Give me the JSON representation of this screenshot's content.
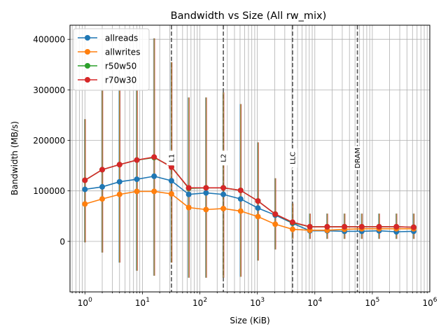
{
  "chart_data": {
    "type": "line",
    "title": "Bandwidth vs Size (All rw_mix)",
    "xlabel": "Size (KiB)",
    "ylabel": "Bandwidth (MB/s)",
    "x_scale": "log",
    "xlim": [
      0.55,
      1000000
    ],
    "ylim": [
      -100000,
      428000
    ],
    "grid": true,
    "legend_position": "top-left",
    "x_ticks": [
      {
        "value": 1,
        "base": "10",
        "exp": "0"
      },
      {
        "value": 10,
        "base": "10",
        "exp": "1"
      },
      {
        "value": 100,
        "base": "10",
        "exp": "2"
      },
      {
        "value": 1000,
        "base": "10",
        "exp": "3"
      },
      {
        "value": 10000,
        "base": "10",
        "exp": "4"
      },
      {
        "value": 100000,
        "base": "10",
        "exp": "5"
      },
      {
        "value": 1000000,
        "base": "10",
        "exp": "6"
      }
    ],
    "y_ticks": [
      {
        "value": 0,
        "label": "0"
      },
      {
        "value": 100000,
        "label": "100000"
      },
      {
        "value": 200000,
        "label": "200000"
      },
      {
        "value": 300000,
        "label": "300000"
      },
      {
        "value": 400000,
        "label": "400000"
      }
    ],
    "cache_lines": [
      {
        "label": "L1",
        "x": 32
      },
      {
        "label": "L2",
        "x": 256
      },
      {
        "label": "LLC",
        "x": 4096
      },
      {
        "label": "DRAM",
        "x": 55000
      }
    ],
    "x": [
      1,
      2,
      4,
      8,
      16,
      32,
      64,
      128,
      256,
      512,
      1024,
      2048,
      4096,
      8192,
      16384,
      32768,
      65536,
      131072,
      262144,
      524288
    ],
    "series": [
      {
        "name": "allreads",
        "color": "#1f77b4",
        "values": [
          103000,
          108000,
          118000,
          123000,
          129000,
          120000,
          93000,
          96000,
          93000,
          84000,
          66000,
          52000,
          36000,
          21000,
          21000,
          20000,
          20000,
          21000,
          19000,
          20000
        ]
      },
      {
        "name": "allwrites",
        "color": "#ff7f0e",
        "values": [
          74000,
          84000,
          93000,
          99000,
          99000,
          94000,
          67000,
          63000,
          65000,
          60000,
          49000,
          34000,
          24000,
          22000,
          22000,
          24000,
          25000,
          25000,
          25000,
          25000
        ]
      },
      {
        "name": "r50w50",
        "color": "#2ca02c",
        "values": [
          121000,
          142000,
          152000,
          161000,
          166000,
          148000,
          105000,
          106000,
          106000,
          101000,
          80000,
          54000,
          37000,
          29000,
          29000,
          29000,
          29000,
          29000,
          29000,
          28000
        ]
      },
      {
        "name": "r70w30",
        "color": "#d62728",
        "values": [
          121000,
          142000,
          152000,
          161000,
          167000,
          147000,
          106000,
          106000,
          106000,
          101000,
          80000,
          54000,
          38000,
          29000,
          29000,
          29000,
          29000,
          29000,
          29000,
          28000
        ]
      }
    ],
    "error_ranges": [
      [
        -2000,
        242000
      ],
      [
        -22000,
        300000
      ],
      [
        -42000,
        300000
      ],
      [
        -58000,
        300000
      ],
      [
        -68000,
        402000
      ],
      [
        -42000,
        355000
      ],
      [
        -72000,
        285000
      ],
      [
        -72000,
        285000
      ],
      [
        -72000,
        295000
      ],
      [
        -70000,
        272000
      ],
      [
        -38000,
        196000
      ],
      [
        -16000,
        125000
      ],
      [
        5000,
        75000
      ],
      [
        5000,
        55000
      ],
      [
        5000,
        55000
      ],
      [
        5000,
        55000
      ],
      [
        5000,
        55000
      ],
      [
        5000,
        55000
      ],
      [
        5000,
        55000
      ],
      [
        5000,
        55000
      ]
    ]
  }
}
